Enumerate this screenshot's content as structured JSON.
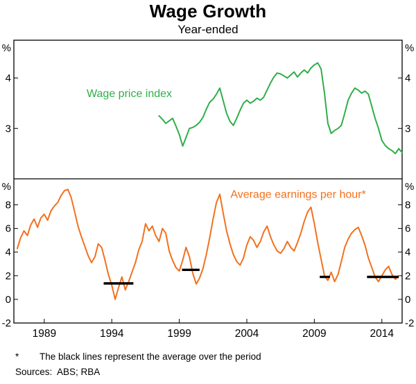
{
  "title": "Wage Growth",
  "subtitle": "Year-ended",
  "footnote_marker": "*",
  "footnote_text": "The black lines represent the average over the period",
  "sources": "Sources:  ABS; RBA",
  "colors": {
    "wpi": "#2fae49",
    "aeph": "#f3701d",
    "average_line": "#000000",
    "axis": "#000000"
  },
  "axes": {
    "x": {
      "min": 1986.75,
      "max": 2015.5,
      "tick_years": [
        1989,
        1994,
        1999,
        2004,
        2009,
        2014
      ]
    },
    "panels": [
      {
        "name": "wage-price-index-panel",
        "unit": "%",
        "ylim": [
          2,
          4.75
        ],
        "yticks": [
          3,
          4
        ]
      },
      {
        "name": "average-earnings-panel",
        "unit": "%",
        "ylim": [
          -2,
          10.2
        ],
        "yticks": [
          -2,
          0,
          2,
          4,
          6,
          8
        ]
      }
    ]
  },
  "chart_data": [
    {
      "type": "line",
      "name": "Wage price index",
      "panel": 0,
      "color_key": "wpi",
      "label": {
        "text": "Wage price index",
        "x": 1995.3,
        "y": 3.62
      },
      "x_start": 1997.5,
      "x_step": 0.25,
      "values": [
        3.25,
        3.18,
        3.1,
        3.15,
        3.2,
        3.05,
        2.88,
        2.65,
        2.82,
        3.0,
        3.02,
        3.06,
        3.12,
        3.22,
        3.38,
        3.52,
        3.58,
        3.68,
        3.8,
        3.55,
        3.3,
        3.14,
        3.06,
        3.2,
        3.36,
        3.5,
        3.56,
        3.5,
        3.54,
        3.6,
        3.56,
        3.62,
        3.76,
        3.9,
        4.02,
        4.1,
        4.08,
        4.04,
        4.0,
        4.06,
        4.12,
        4.02,
        4.1,
        4.16,
        4.1,
        4.2,
        4.26,
        4.3,
        4.18,
        3.7,
        3.1,
        2.9,
        2.96,
        3.0,
        3.06,
        3.3,
        3.56,
        3.7,
        3.8,
        3.76,
        3.7,
        3.74,
        3.68,
        3.44,
        3.2,
        3.0,
        2.76,
        2.66,
        2.6,
        2.56,
        2.5,
        2.6,
        2.52
      ]
    },
    {
      "type": "line",
      "name": "Average earnings per hour*",
      "panel": 1,
      "color_key": "aeph",
      "label": {
        "text": "Average earnings per hour*",
        "x": 2007.8,
        "y": 8.6
      },
      "x_start": 1987.0,
      "x_step": 0.25,
      "values": [
        4.3,
        5.2,
        5.8,
        5.4,
        6.3,
        6.8,
        6.1,
        6.9,
        7.2,
        6.7,
        7.5,
        7.9,
        8.2,
        8.8,
        9.2,
        9.3,
        8.6,
        7.4,
        6.2,
        5.3,
        4.5,
        3.7,
        3.1,
        3.6,
        4.7,
        4.4,
        3.3,
        2.1,
        1.2,
        0.0,
        1.0,
        1.9,
        0.8,
        1.5,
        2.3,
        3.1,
        4.2,
        4.9,
        6.4,
        5.8,
        6.2,
        5.4,
        4.9,
        6.0,
        5.6,
        4.1,
        3.3,
        2.7,
        2.4,
        3.3,
        4.4,
        3.6,
        2.2,
        1.3,
        1.8,
        2.6,
        3.8,
        5.2,
        6.8,
        8.2,
        8.9,
        7.3,
        5.8,
        4.7,
        3.8,
        3.2,
        2.9,
        3.5,
        4.6,
        5.3,
        5.0,
        4.4,
        4.9,
        5.7,
        6.2,
        5.3,
        4.6,
        4.1,
        3.9,
        4.3,
        4.9,
        4.4,
        4.1,
        4.8,
        5.6,
        6.6,
        7.4,
        7.8,
        6.4,
        4.8,
        3.4,
        2.0,
        1.6,
        2.3,
        1.5,
        2.1,
        3.2,
        4.4,
        5.1,
        5.6,
        5.9,
        6.1,
        5.4,
        4.6,
        3.5,
        2.7,
        1.9,
        1.5,
        2.0,
        2.5,
        2.8,
        2.1,
        1.7,
        2.0
      ],
      "average_lines": [
        {
          "x1": 1993.4,
          "x2": 1995.6,
          "y": 1.35
        },
        {
          "x1": 1999.2,
          "x2": 2000.5,
          "y": 2.5
        },
        {
          "x1": 2009.4,
          "x2": 2010.15,
          "y": 1.9
        },
        {
          "x1": 2012.9,
          "x2": 2015.25,
          "y": 1.9
        }
      ]
    }
  ]
}
